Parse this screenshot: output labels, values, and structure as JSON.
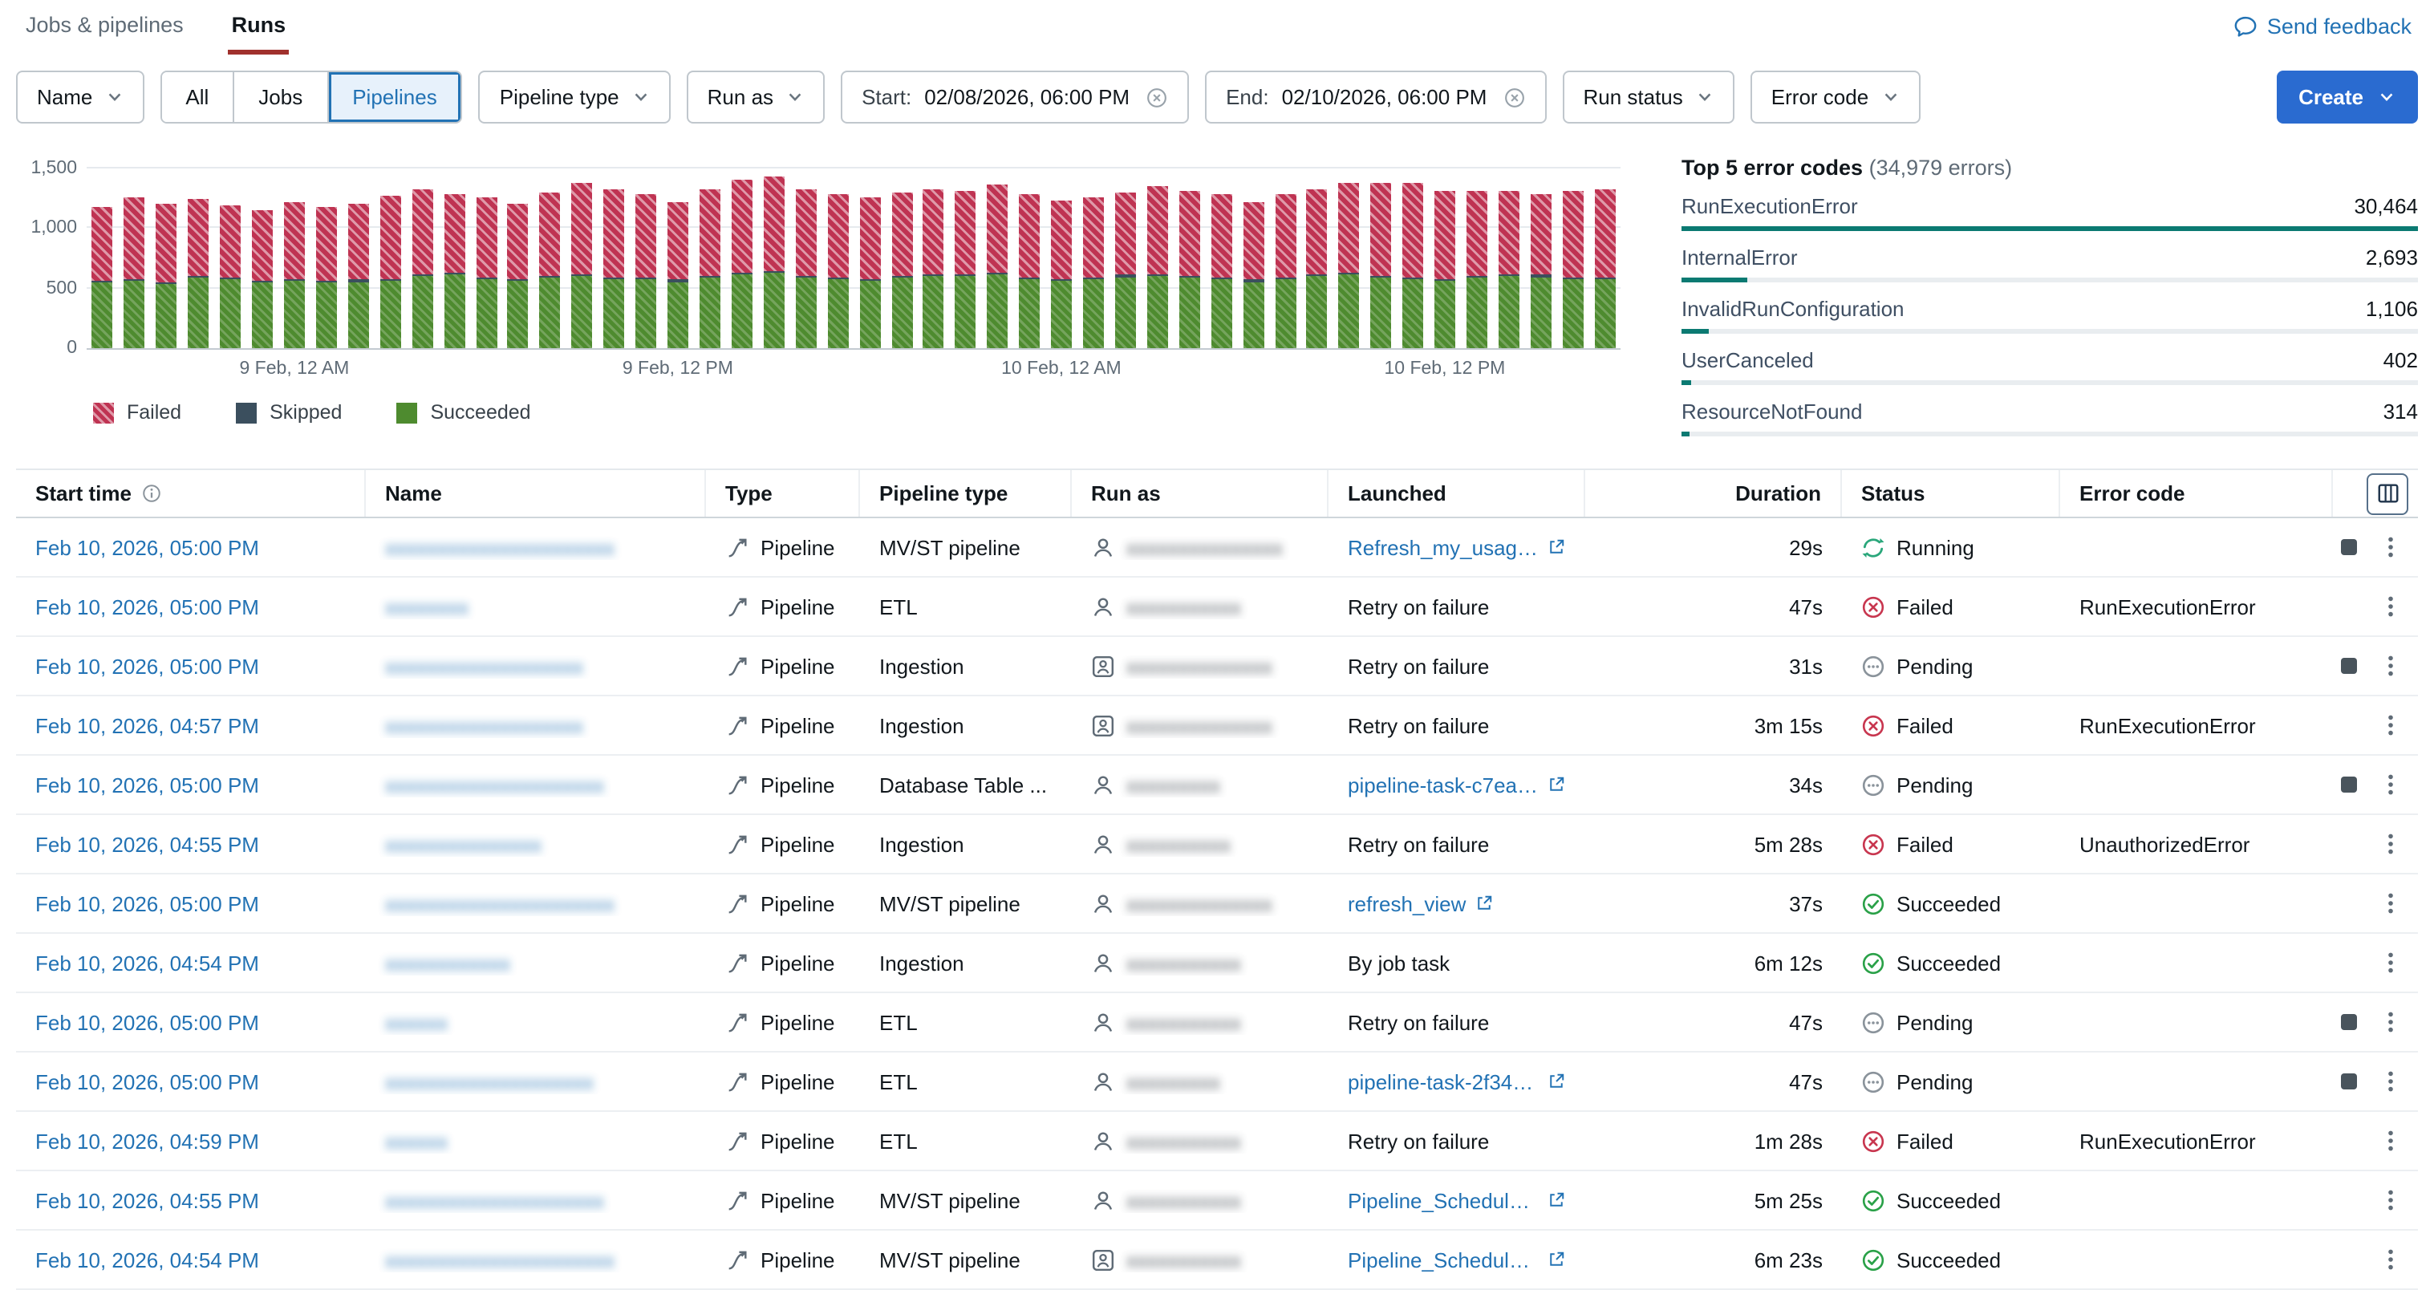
{
  "colors": {
    "text": "#11171c",
    "text_muted": "#5f6b76",
    "link": "#2272b4",
    "create": "#2a6bd0",
    "tab_underline": "#a0312d",
    "bar_failed": "#bf3352",
    "bar_skipped": "#3b4f5e",
    "bar_succeeded": "#4e8b2f",
    "teal": "#0b7a72",
    "running": "#2aa77b",
    "failed": "#c8364f",
    "pending": "#8a939b",
    "succeeded": "#2aa148"
  },
  "header": {
    "tab_jobs": "Jobs & pipelines",
    "tab_runs": "Runs",
    "send_feedback": "Send feedback"
  },
  "filters": {
    "name_label": "Name",
    "segments": [
      "All",
      "Jobs",
      "Pipelines"
    ],
    "selected_segment": "Pipelines",
    "pipeline_type_label": "Pipeline type",
    "run_as_label": "Run as",
    "start_label": "Start:",
    "start_value": "02/08/2026, 06:00 PM",
    "end_label": "End:",
    "end_value": "02/10/2026, 06:00 PM",
    "run_status_label": "Run status",
    "error_code_label": "Error code",
    "create_label": "Create"
  },
  "chart_data": {
    "type": "bar",
    "stacked": true,
    "title": "",
    "xlabel": "",
    "ylabel": "",
    "ylim": [
      0,
      1500
    ],
    "yticks": [
      0,
      500,
      1000,
      1500
    ],
    "ytick_labels": [
      "0",
      "500",
      "1,000",
      "1,500"
    ],
    "xticks": [
      {
        "label": "9 Feb, 12 AM",
        "slot": 6
      },
      {
        "label": "9 Feb, 12 PM",
        "slot": 18
      },
      {
        "label": "10 Feb, 12 AM",
        "slot": 30
      },
      {
        "label": "10 Feb, 12 PM",
        "slot": 42
      }
    ],
    "legend": [
      "Failed",
      "Skipped",
      "Succeeded"
    ],
    "legend_position": "bottom",
    "grid": true,
    "series": [
      {
        "name": "Succeeded",
        "color_key": "bar_succeeded",
        "values": [
          545,
          560,
          540,
          585,
          570,
          550,
          560,
          545,
          555,
          565,
          600,
          615,
          575,
          560,
          585,
          605,
          580,
          570,
          555,
          590,
          620,
          630,
          585,
          575,
          565,
          590,
          600,
          605,
          615,
          580,
          560,
          575,
          595,
          605,
          585,
          570,
          555,
          580,
          600,
          610,
          590,
          575,
          565,
          585,
          605,
          595,
          580,
          570
        ]
      },
      {
        "name": "Skipped",
        "color_key": "bar_skipped",
        "values": [
          15,
          15,
          15,
          15,
          15,
          15,
          15,
          15,
          15,
          15,
          15,
          15,
          15,
          15,
          15,
          15,
          15,
          15,
          15,
          15,
          15,
          15,
          15,
          15,
          15,
          15,
          15,
          15,
          15,
          15,
          15,
          15,
          15,
          15,
          15,
          15,
          15,
          15,
          15,
          15,
          15,
          15,
          15,
          15,
          15,
          15,
          15,
          15
        ]
      },
      {
        "name": "Failed",
        "color_key": "bar_failed",
        "values": [
          620,
          690,
          650,
          640,
          610,
          590,
          640,
          615,
          635,
          695,
          715,
          655,
          670,
          635,
          695,
          755,
          735,
          695,
          655,
          715,
          775,
          790,
          730,
          695,
          675,
          695,
          715,
          695,
          735,
          695,
          655,
          675,
          695,
          735,
          715,
          695,
          655,
          695,
          715,
          755,
          775,
          790,
          735,
          715,
          695,
          675,
          715,
          735
        ]
      }
    ]
  },
  "error_panel": {
    "title": "Top 5 error codes",
    "subtitle": "(34,979 errors)",
    "items": [
      {
        "label": "RunExecutionError",
        "count": 30464,
        "count_label": "30,464"
      },
      {
        "label": "InternalError",
        "count": 2693,
        "count_label": "2,693"
      },
      {
        "label": "InvalidRunConfiguration",
        "count": 1106,
        "count_label": "1,106"
      },
      {
        "label": "UserCanceled",
        "count": 402,
        "count_label": "402"
      },
      {
        "label": "ResourceNotFound",
        "count": 314,
        "count_label": "314"
      }
    ]
  },
  "table": {
    "columns": {
      "start_time": "Start time",
      "name": "Name",
      "type": "Type",
      "pipeline_type": "Pipeline type",
      "run_as": "Run as",
      "launched": "Launched",
      "duration": "Duration",
      "status": "Status",
      "error_code": "Error code"
    },
    "rows": [
      {
        "start": "Feb 10, 2026, 05:00 PM",
        "name_redacted": "xxxxxxxxxxxxxxxxxxxxxx",
        "type": "Pipeline",
        "pipeline_type": "MV/ST pipeline",
        "run_as_redacted": "xxxxxxxxxxxxxxx",
        "run_as_icon": "user",
        "launched": "Refresh_my_usage_...",
        "launched_link": true,
        "duration": "29s",
        "status": "Running",
        "error_code": "",
        "can_stop": true
      },
      {
        "start": "Feb 10, 2026, 05:00 PM",
        "name_redacted": "xxxxxxxx",
        "type": "Pipeline",
        "pipeline_type": "ETL",
        "run_as_redacted": "xxxxxxxxxxx",
        "run_as_icon": "user",
        "launched": "Retry on failure",
        "launched_link": false,
        "duration": "47s",
        "status": "Failed",
        "error_code": "RunExecutionError",
        "can_stop": false
      },
      {
        "start": "Feb 10, 2026, 05:00 PM",
        "name_redacted": "xxxxxxxxxxxxxxxxxxx",
        "type": "Pipeline",
        "pipeline_type": "Ingestion",
        "run_as_redacted": "xxxxxxxxxxxxxx",
        "run_as_icon": "service",
        "launched": "Retry on failure",
        "launched_link": false,
        "duration": "31s",
        "status": "Pending",
        "error_code": "",
        "can_stop": true
      },
      {
        "start": "Feb 10, 2026, 04:57 PM",
        "name_redacted": "xxxxxxxxxxxxxxxxxxx",
        "type": "Pipeline",
        "pipeline_type": "Ingestion",
        "run_as_redacted": "xxxxxxxxxxxxxx",
        "run_as_icon": "service",
        "launched": "Retry on failure",
        "launched_link": false,
        "duration": "3m 15s",
        "status": "Failed",
        "error_code": "RunExecutionError",
        "can_stop": false
      },
      {
        "start": "Feb 10, 2026, 05:00 PM",
        "name_redacted": "xxxxxxxxxxxxxxxxxxxxx",
        "type": "Pipeline",
        "pipeline_type": "Database Table ...",
        "run_as_redacted": "xxxxxxxxx",
        "run_as_icon": "user",
        "launched": "pipeline-task-c7ea0...",
        "launched_link": true,
        "duration": "34s",
        "status": "Pending",
        "error_code": "",
        "can_stop": true
      },
      {
        "start": "Feb 10, 2026, 04:55 PM",
        "name_redacted": "xxxxxxxxxxxxxxx",
        "type": "Pipeline",
        "pipeline_type": "Ingestion",
        "run_as_redacted": "xxxxxxxxxx",
        "run_as_icon": "user",
        "launched": "Retry on failure",
        "launched_link": false,
        "duration": "5m 28s",
        "status": "Failed",
        "error_code": "UnauthorizedError",
        "can_stop": false
      },
      {
        "start": "Feb 10, 2026, 05:00 PM",
        "name_redacted": "xxxxxxxxxxxxxxxxxxxxxx",
        "type": "Pipeline",
        "pipeline_type": "MV/ST pipeline",
        "run_as_redacted": "xxxxxxxxxxxxxx",
        "run_as_icon": "user",
        "launched": "refresh_view",
        "launched_link": true,
        "duration": "37s",
        "status": "Succeeded",
        "error_code": "",
        "can_stop": false
      },
      {
        "start": "Feb 10, 2026, 04:54 PM",
        "name_redacted": "xxxxxxxxxxxx",
        "type": "Pipeline",
        "pipeline_type": "Ingestion",
        "run_as_redacted": "xxxxxxxxxxx",
        "run_as_icon": "user",
        "launched": "By job task",
        "launched_link": false,
        "duration": "6m 12s",
        "status": "Succeeded",
        "error_code": "",
        "can_stop": false
      },
      {
        "start": "Feb 10, 2026, 05:00 PM",
        "name_redacted": "xxxxxx",
        "type": "Pipeline",
        "pipeline_type": "ETL",
        "run_as_redacted": "xxxxxxxxxxx",
        "run_as_icon": "user",
        "launched": "Retry on failure",
        "launched_link": false,
        "duration": "47s",
        "status": "Pending",
        "error_code": "",
        "can_stop": true
      },
      {
        "start": "Feb 10, 2026, 05:00 PM",
        "name_redacted": "xxxxxxxxxxxxxxxxxxxx",
        "type": "Pipeline",
        "pipeline_type": "ETL",
        "run_as_redacted": "xxxxxxxxx",
        "run_as_icon": "user",
        "launched": "pipeline-task-2f34e...",
        "launched_link": true,
        "duration": "47s",
        "status": "Pending",
        "error_code": "",
        "can_stop": true
      },
      {
        "start": "Feb 10, 2026, 04:59 PM",
        "name_redacted": "xxxxxx",
        "type": "Pipeline",
        "pipeline_type": "ETL",
        "run_as_redacted": "xxxxxxxxxxx",
        "run_as_icon": "user",
        "launched": "Retry on failure",
        "launched_link": false,
        "duration": "1m 28s",
        "status": "Failed",
        "error_code": "RunExecutionError",
        "can_stop": false
      },
      {
        "start": "Feb 10, 2026, 04:55 PM",
        "name_redacted": "xxxxxxxxxxxxxxxxxxxxx",
        "type": "Pipeline",
        "pipeline_type": "MV/ST pipeline",
        "run_as_redacted": "xxxxxxxxxxx",
        "run_as_icon": "user",
        "launched": "Pipeline_Schedule_...",
        "launched_link": true,
        "duration": "5m 25s",
        "status": "Succeeded",
        "error_code": "",
        "can_stop": false
      },
      {
        "start": "Feb 10, 2026, 04:54 PM",
        "name_redacted": "xxxxxxxxxxxxxxxxxxxxxx",
        "type": "Pipeline",
        "pipeline_type": "MV/ST pipeline",
        "run_as_redacted": "xxxxxxxxxxx",
        "run_as_icon": "service",
        "launched": "Pipeline_Schedule_...",
        "launched_link": true,
        "duration": "6m 23s",
        "status": "Succeeded",
        "error_code": "",
        "can_stop": false
      }
    ]
  }
}
